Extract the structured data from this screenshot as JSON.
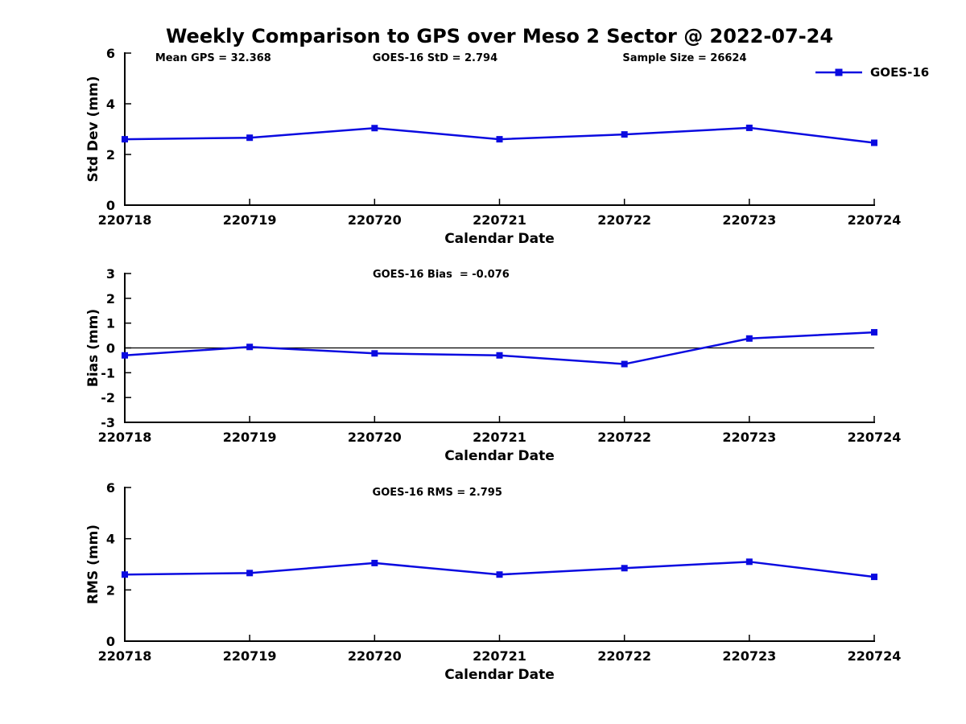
{
  "title": "Weekly Comparison to GPS over Meso 2 Sector @ 2022-07-24",
  "legend": {
    "label": "GOES-16",
    "marker": "square",
    "position": "top-right-outside"
  },
  "colors": {
    "line": "#0a0ae0",
    "axis": "#000000",
    "text": "#000000",
    "background": "#ffffff"
  },
  "chart_data": [
    {
      "type": "line",
      "id": "std-dev",
      "ylabel": "Std Dev (mm)",
      "xlabel": "Calendar Date",
      "ylim": [
        0,
        6
      ],
      "yticks": [
        0,
        2,
        4,
        6
      ],
      "grid": false,
      "annotations": [
        "Mean GPS = 32.368",
        "GOES-16 StD = 2.794",
        "Sample Size = 26624"
      ],
      "categories": [
        "220718",
        "220719",
        "220720",
        "220721",
        "220722",
        "220723",
        "220724"
      ],
      "series": [
        {
          "name": "GOES-16",
          "values": [
            2.6,
            2.66,
            3.04,
            2.6,
            2.79,
            3.05,
            2.46
          ]
        }
      ]
    },
    {
      "type": "line",
      "id": "bias",
      "ylabel": "Bias (mm)",
      "xlabel": "Calendar Date",
      "ylim": [
        -3,
        3
      ],
      "yticks": [
        -3,
        -2,
        -1,
        0,
        1,
        2,
        3
      ],
      "grid": false,
      "zero_line": true,
      "annotations": [
        "GOES-16 Bias  = -0.076"
      ],
      "categories": [
        "220718",
        "220719",
        "220720",
        "220721",
        "220722",
        "220723",
        "220724"
      ],
      "series": [
        {
          "name": "GOES-16",
          "values": [
            -0.3,
            0.04,
            -0.22,
            -0.3,
            -0.65,
            0.38,
            0.63
          ]
        }
      ]
    },
    {
      "type": "line",
      "id": "rms",
      "ylabel": "RMS (mm)",
      "xlabel": "Calendar Date",
      "ylim": [
        0,
        6
      ],
      "yticks": [
        0,
        2,
        4,
        6
      ],
      "grid": false,
      "annotations": [
        "GOES-16 RMS = 2.795"
      ],
      "categories": [
        "220718",
        "220719",
        "220720",
        "220721",
        "220722",
        "220723",
        "220724"
      ],
      "series": [
        {
          "name": "GOES-16",
          "values": [
            2.6,
            2.66,
            3.05,
            2.6,
            2.85,
            3.1,
            2.51
          ]
        }
      ]
    }
  ]
}
